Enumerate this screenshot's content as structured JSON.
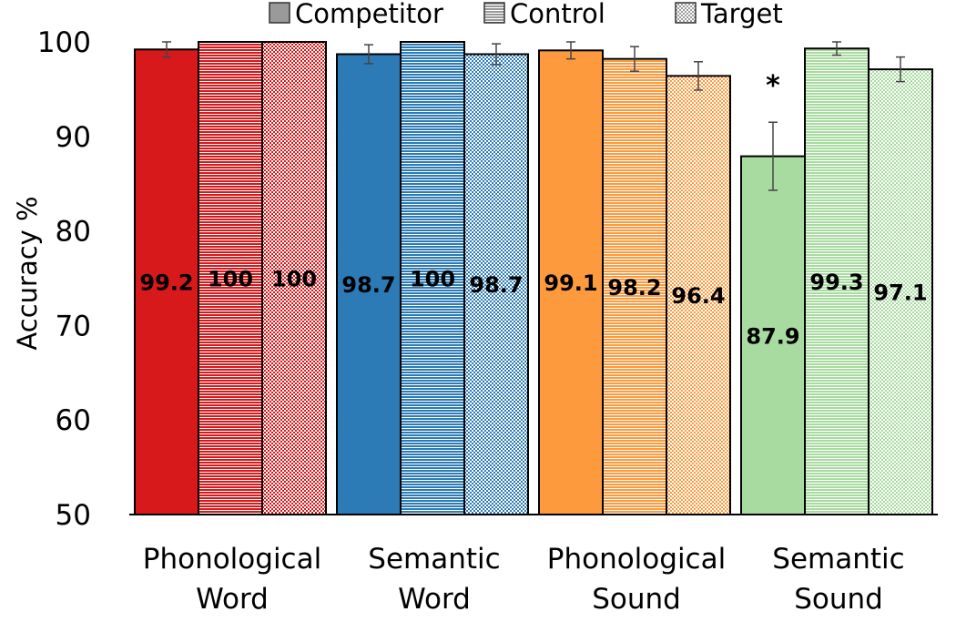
{
  "chart_data": {
    "type": "bar",
    "ylabel": "Accuracy %",
    "ylim": [
      50,
      100
    ],
    "yticks": [
      50,
      60,
      70,
      80,
      90,
      100
    ],
    "grid": false,
    "legend_position": "top",
    "categories": [
      [
        "Phonological",
        "Word"
      ],
      [
        "Semantic",
        "Word"
      ],
      [
        "Phonological",
        "Sound"
      ],
      [
        "Semantic",
        "Sound"
      ]
    ],
    "group_colors": [
      "#d7191c",
      "#2c7bb6",
      "#fd9a3e",
      "#a8dba0"
    ],
    "series": [
      {
        "name": "Competitor",
        "pattern": "solid",
        "values": [
          99.2,
          98.7,
          99.1,
          87.9
        ],
        "labels": [
          "99.2",
          "98.7",
          "99.1",
          "87.9"
        ],
        "errors": [
          0.8,
          1.0,
          0.9,
          3.6
        ]
      },
      {
        "name": "Control",
        "pattern": "horizontal-lines",
        "values": [
          100,
          100,
          98.2,
          99.3
        ],
        "labels": [
          "100",
          "100",
          "98.2",
          "99.3"
        ],
        "errors": [
          0,
          0,
          1.3,
          0.7
        ]
      },
      {
        "name": "Target",
        "pattern": "dots",
        "values": [
          100,
          98.7,
          96.4,
          97.1
        ],
        "labels": [
          "100",
          "98.7",
          "96.4",
          "97.1"
        ],
        "errors": [
          0,
          1.1,
          1.5,
          1.3
        ]
      }
    ],
    "annotations": [
      {
        "text": "*",
        "category_index": 3,
        "series_index": 0
      }
    ]
  }
}
